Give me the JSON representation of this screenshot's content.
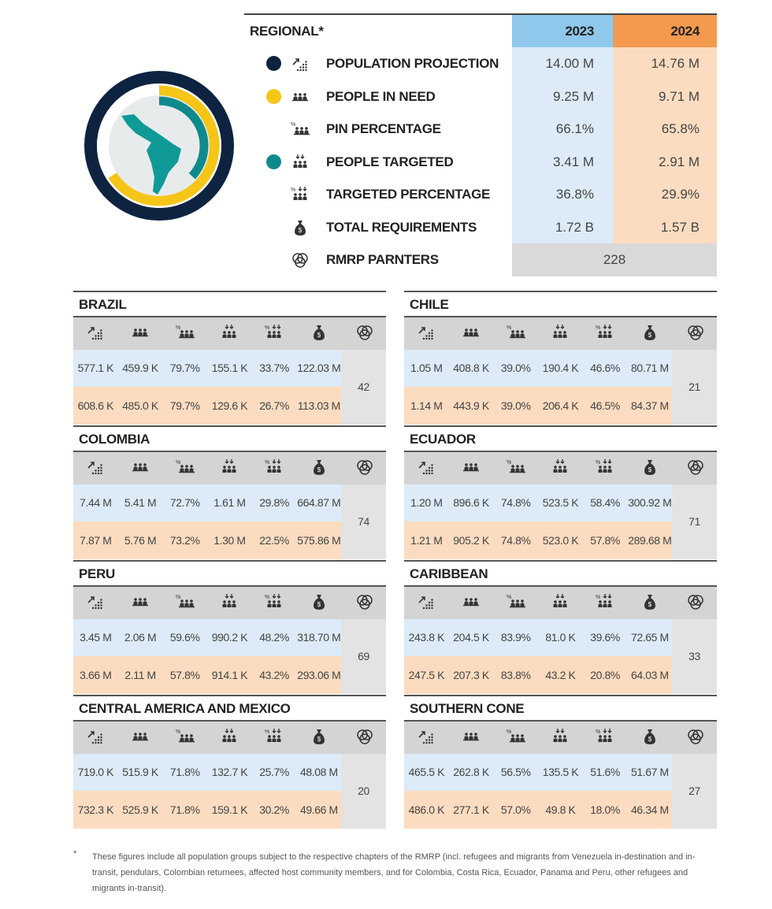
{
  "regional": {
    "title": "REGIONAL*",
    "years": [
      "2023",
      "2024"
    ],
    "rows": [
      {
        "label": "POPULATION PROJECTION",
        "values": [
          "14.00 M",
          "14.76 M"
        ]
      },
      {
        "label": "PEOPLE IN NEED",
        "values": [
          "9.25 M",
          "9.71 M"
        ]
      },
      {
        "label": "PIN PERCENTAGE",
        "values": [
          "66.1%",
          "65.8%"
        ]
      },
      {
        "label": "PEOPLE TARGETED",
        "values": [
          "3.41 M",
          "2.91 M"
        ]
      },
      {
        "label": "TARGETED PERCENTAGE",
        "values": [
          "36.8%",
          "29.9%"
        ]
      },
      {
        "label": "TOTAL REQUIREMENTS",
        "values": [
          "1.72 B",
          "1.57 B"
        ]
      }
    ],
    "partners": {
      "label": "RMRP PARNTERS",
      "value": "228"
    }
  },
  "countries": [
    {
      "name": "BRAZIL",
      "rows": [
        [
          "577.1 K",
          "459.9 K",
          "79.7%",
          "155.1 K",
          "33.7%",
          "122.03 M"
        ],
        [
          "608.6 K",
          "485.0 K",
          "79.7%",
          "129.6 K",
          "26.7%",
          "113.03 M"
        ]
      ],
      "partners": "42"
    },
    {
      "name": "CHILE",
      "rows": [
        [
          "1.05 M",
          "408.8 K",
          "39.0%",
          "190.4 K",
          "46.6%",
          "80.71 M"
        ],
        [
          "1.14 M",
          "443.9 K",
          "39.0%",
          "206.4 K",
          "46.5%",
          "84.37 M"
        ]
      ],
      "partners": "21"
    },
    {
      "name": "COLOMBIA",
      "rows": [
        [
          "7.44 M",
          "5.41 M",
          "72.7%",
          "1.61 M",
          "29.8%",
          "664.87 M"
        ],
        [
          "7.87 M",
          "5.76 M",
          "73.2%",
          "1.30 M",
          "22.5%",
          "575.86 M"
        ]
      ],
      "partners": "74"
    },
    {
      "name": "ECUADOR",
      "rows": [
        [
          "1.20 M",
          "896.6 K",
          "74.8%",
          "523.5 K",
          "58.4%",
          "300.92 M"
        ],
        [
          "1.21 M",
          "905.2 K",
          "74.8%",
          "523.0 K",
          "57.8%",
          "289.68 M"
        ]
      ],
      "partners": "71"
    },
    {
      "name": "PERU",
      "rows": [
        [
          "3.45 M",
          "2.06 M",
          "59.6%",
          "990.2 K",
          "48.2%",
          "318.70 M"
        ],
        [
          "3.66 M",
          "2.11 M",
          "57.8%",
          "914.1 K",
          "43.2%",
          "293.06 M"
        ]
      ],
      "partners": "69"
    },
    {
      "name": "CARIBBEAN",
      "rows": [
        [
          "243.8 K",
          "204.5 K",
          "83.9%",
          "81.0 K",
          "39.6%",
          "72.65 M"
        ],
        [
          "247.5 K",
          "207.3 K",
          "83.8%",
          "43.2 K",
          "20.8%",
          "64.03 M"
        ]
      ],
      "partners": "33"
    },
    {
      "name": "CENTRAL AMERICA AND MEXICO",
      "rows": [
        [
          "719.0 K",
          "515.9 K",
          "71.8%",
          "132.7 K",
          "25.7%",
          "48.08 M"
        ],
        [
          "732.3 K",
          "525.9 K",
          "71.8%",
          "159.1 K",
          "30.2%",
          "49.66 M"
        ]
      ],
      "partners": "20"
    },
    {
      "name": "SOUTHERN CONE",
      "rows": [
        [
          "465.5 K",
          "262.8 K",
          "56.5%",
          "135.5 K",
          "51.6%",
          "51.67 M"
        ],
        [
          "486.0 K",
          "277.1 K",
          "57.0%",
          "49.8 K",
          "18.0%",
          "46.34 M"
        ]
      ],
      "partners": "27"
    }
  ],
  "footnote": {
    "marker": "*",
    "text": "These figures include all population groups subject to the respective chapters of the RMRP (incl. refugees and migrants from Venezuela in-destination and in-transit, pendulars, Colombian returnees, affected host community members, and for Colombia, Costa Rica, Ecuador, Panama and Peru, other refugees and migrants in-transit)."
  }
}
